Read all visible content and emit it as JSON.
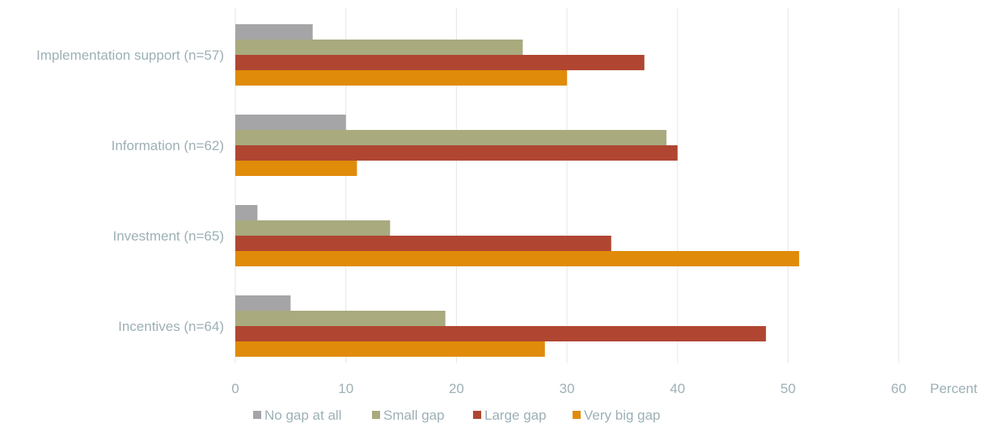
{
  "chart_data": {
    "type": "bar",
    "orientation": "horizontal",
    "categories": [
      "Implementation support (n=57)",
      "Information (n=62)",
      "Investment (n=65)",
      "Incentives (n=64)"
    ],
    "series": [
      {
        "name": "No gap at all",
        "color": "#A5A5A7",
        "values": [
          7,
          10,
          2,
          5
        ]
      },
      {
        "name": "Small gap",
        "color": "#A9AA7E",
        "values": [
          26,
          39,
          14,
          19
        ]
      },
      {
        "name": "Large gap",
        "color": "#B04632",
        "values": [
          37,
          40,
          34,
          48
        ]
      },
      {
        "name": "Very big gap",
        "color": "#E08B09",
        "values": [
          30,
          11,
          51,
          28
        ]
      }
    ],
    "xlim": [
      0,
      60
    ],
    "xticks": [
      "0",
      "10",
      "20",
      "30",
      "40",
      "50",
      "60"
    ],
    "xlabel": "Percent",
    "ylabel": "",
    "title": "",
    "grid": true,
    "legend_position": "bottom",
    "colors": {
      "label_text": "#9DB0B6",
      "gridline": "#E6E6E6"
    }
  }
}
